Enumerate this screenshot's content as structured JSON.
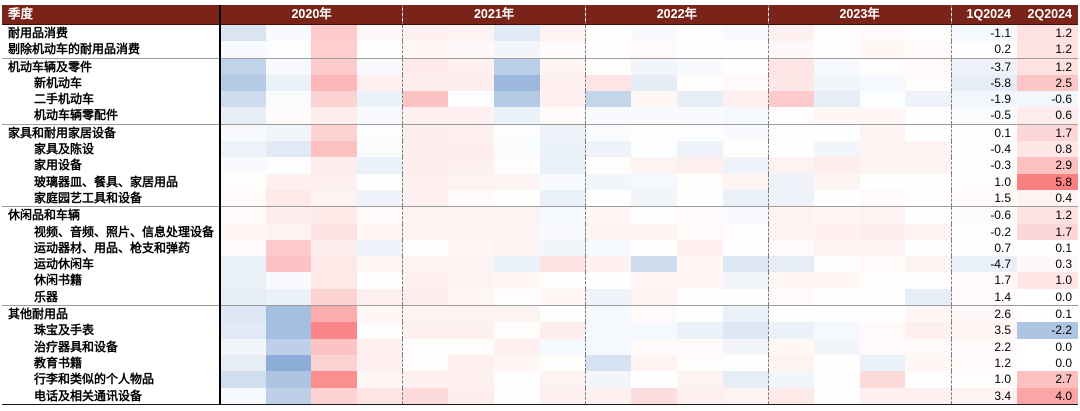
{
  "header": {
    "quarter_label": "季度",
    "years": [
      "2020年",
      "2021年",
      "2022年",
      "2023年"
    ],
    "q1_label": "1Q2024",
    "q2_label": "2Q2024"
  },
  "colors": {
    "header_bg": "#7A2318",
    "header_text": "#FFFFFF",
    "positive_max": "#F8696B",
    "negative_max": "#5A8AC6",
    "midpoint": "#FFFFFF",
    "dashed_grid": "#7D7D7D",
    "group_separator": "#9C9C9C",
    "solid_border": "#000000"
  },
  "chart_data": {
    "type": "heatmap",
    "title": "",
    "columns": [
      "2020Q1",
      "2020Q2",
      "2020Q3",
      "2020Q4",
      "2021Q1",
      "2021Q2",
      "2021Q3",
      "2021Q4",
      "2022Q1",
      "2022Q2",
      "2022Q3",
      "2022Q4",
      "2023Q1",
      "2023Q2",
      "2023Q3",
      "2023Q4"
    ],
    "value_note": "heat values are color intensities read from the图, scale -1 (deep blue) to +1 (deep red); 1Q2024/2Q2024 are printed numbers",
    "rows": [
      {
        "label": "耐用品消费",
        "indent": false,
        "group_end": false,
        "heat": [
          -0.22,
          -0.04,
          0.35,
          0.05,
          0.1,
          0.08,
          -0.18,
          0.08,
          0.02,
          -0.04,
          0.02,
          -0.04,
          0.1,
          0.02,
          0.04,
          0.02
        ],
        "q1": -1.1,
        "q2": 1.2,
        "q1_heat": -0.06,
        "q2_heat": 0.2
      },
      {
        "label": "剔除机动车的耐用品消费",
        "indent": false,
        "group_end": true,
        "heat": [
          -0.04,
          -0.02,
          0.33,
          0.02,
          0.06,
          0.05,
          -0.08,
          0.03,
          0.01,
          0.04,
          0.01,
          0.01,
          0.05,
          0.02,
          0.06,
          0.04
        ],
        "q1": 0.2,
        "q2": 1.2,
        "q1_heat": 0.01,
        "q2_heat": 0.2
      },
      {
        "label": "机动车辆及零件",
        "indent": false,
        "group_end": false,
        "heat": [
          -0.38,
          -0.05,
          0.35,
          -0.04,
          0.14,
          0.1,
          -0.42,
          0.08,
          0.02,
          -0.08,
          -0.04,
          0.01,
          0.18,
          -0.06,
          0.02,
          0.04
        ],
        "q1": -3.7,
        "q2": 1.2,
        "q1_heat": -0.1,
        "q2_heat": 0.2
      },
      {
        "label": "新机动车",
        "indent": true,
        "group_end": false,
        "heat": [
          -0.45,
          -0.12,
          0.48,
          0.1,
          0.12,
          0.12,
          -0.6,
          0.1,
          0.18,
          -0.16,
          0.02,
          0.04,
          0.16,
          -0.08,
          -0.06,
          0.02
        ],
        "q1": -5.8,
        "q2": 2.5,
        "q1_heat": -0.15,
        "q2_heat": 0.38
      },
      {
        "label": "二手机动车",
        "indent": true,
        "group_end": false,
        "heat": [
          -0.3,
          -0.03,
          0.3,
          -0.12,
          0.4,
          -0.02,
          -0.45,
          0.1,
          -0.35,
          0.06,
          -0.15,
          0.1,
          0.35,
          -0.15,
          -0.02,
          -0.1
        ],
        "q1": -1.9,
        "q2": -0.6,
        "q1_heat": -0.07,
        "q2_heat": -0.07
      },
      {
        "label": "机动车辆零配件",
        "indent": true,
        "group_end": true,
        "heat": [
          -0.15,
          0.03,
          0.12,
          -0.05,
          0.1,
          0.1,
          -0.12,
          0.04,
          -0.04,
          -0.04,
          -0.04,
          -0.06,
          0.02,
          0.06,
          0.06,
          0.01
        ],
        "q1": -0.5,
        "q2": 0.6,
        "q1_heat": -0.03,
        "q2_heat": 0.13
      },
      {
        "label": "家具和耐用家居设备",
        "indent": false,
        "group_end": false,
        "heat": [
          -0.05,
          -0.08,
          0.3,
          -0.02,
          0.12,
          0.1,
          -0.02,
          -0.1,
          -0.03,
          0.01,
          -0.02,
          -0.04,
          0.02,
          0.01,
          0.08,
          0.01
        ],
        "q1": 0.1,
        "q2": 1.7,
        "q1_heat": 0.01,
        "q2_heat": 0.27
      },
      {
        "label": "家具及陈设",
        "indent": true,
        "group_end": false,
        "heat": [
          -0.1,
          -0.18,
          0.42,
          -0.03,
          0.12,
          0.12,
          -0.03,
          -0.12,
          -0.1,
          -0.02,
          -0.1,
          0.02,
          0.01,
          -0.08,
          0.08,
          0.08
        ],
        "q1": -0.4,
        "q2": 0.8,
        "q1_heat": -0.02,
        "q2_heat": 0.16
      },
      {
        "label": "家用设备",
        "indent": true,
        "group_end": false,
        "heat": [
          -0.04,
          -0.02,
          0.12,
          -0.12,
          0.12,
          0.1,
          0.02,
          -0.12,
          0.02,
          0.08,
          0.1,
          -0.1,
          0.08,
          0.12,
          0.08,
          0.08
        ],
        "q1": -0.3,
        "q2": 2.9,
        "q1_heat": -0.02,
        "q2_heat": 0.42
      },
      {
        "label": "玻璃器皿、餐具、家居用品",
        "indent": true,
        "group_end": false,
        "heat": [
          0.02,
          0.1,
          0.1,
          0.01,
          0.1,
          0.08,
          0.08,
          -0.04,
          -0.08,
          -0.06,
          0.02,
          0.08,
          -0.1,
          0.08,
          0.01,
          0.01
        ],
        "q1": 1.0,
        "q2": 5.8,
        "q1_heat": 0.02,
        "q2_heat": 0.85
      },
      {
        "label": "家庭园艺工具和设备",
        "indent": true,
        "group_end": true,
        "heat": [
          0.04,
          0.15,
          0.08,
          -0.1,
          0.1,
          0.04,
          0.01,
          -0.12,
          0.01,
          -0.08,
          0.01,
          -0.12,
          -0.1,
          0.01,
          0.04,
          0.01
        ],
        "q1": 1.5,
        "q2": 0.4,
        "q1_heat": 0.04,
        "q2_heat": 0.08
      },
      {
        "label": "休闲品和车辆",
        "indent": false,
        "group_end": false,
        "heat": [
          0.03,
          0.12,
          0.15,
          0.04,
          0.08,
          0.08,
          0.08,
          -0.06,
          0.06,
          0.01,
          0.04,
          -0.04,
          0.08,
          0.06,
          0.08,
          0.01
        ],
        "q1": -0.6,
        "q2": 1.2,
        "q1_heat": -0.03,
        "q2_heat": 0.2
      },
      {
        "label": "视频、音频、照片、信息处理设备",
        "indent": true,
        "group_end": false,
        "heat": [
          0.06,
          0.08,
          0.2,
          0.06,
          0.08,
          0.08,
          0.08,
          -0.04,
          0.08,
          0.08,
          0.04,
          0.02,
          0.08,
          0.1,
          0.12,
          0.08
        ],
        "q1": -0.2,
        "q2": 1.7,
        "q1_heat": -0.01,
        "q2_heat": 0.27
      },
      {
        "label": "运动器材、用品、枪支和弹药",
        "indent": true,
        "group_end": false,
        "heat": [
          0.04,
          0.35,
          0.12,
          -0.1,
          0.02,
          0.06,
          0.08,
          -0.08,
          -0.06,
          0.01,
          0.1,
          0.01,
          0.04,
          0.08,
          0.08,
          0.01
        ],
        "q1": 0.7,
        "q2": 0.1,
        "q1_heat": 0.02,
        "q2_heat": 0.01
      },
      {
        "label": "运动休闲车",
        "indent": true,
        "group_end": false,
        "heat": [
          -0.12,
          0.4,
          0.15,
          0.06,
          0.08,
          0.08,
          -0.12,
          0.2,
          0.1,
          -0.3,
          0.06,
          -0.2,
          -0.15,
          0.02,
          0.04,
          0.08
        ],
        "q1": -4.7,
        "q2": 0.3,
        "q1_heat": -0.13,
        "q2_heat": 0.05
      },
      {
        "label": "休闲书籍",
        "indent": true,
        "group_end": false,
        "heat": [
          -0.12,
          -0.04,
          0.15,
          0.01,
          0.1,
          0.08,
          0.06,
          0.01,
          0.01,
          0.06,
          0.06,
          -0.08,
          0.06,
          0.06,
          0.01,
          0.01
        ],
        "q1": 1.7,
        "q2": 1.0,
        "q1_heat": 0.04,
        "q2_heat": 0.17
      },
      {
        "label": "乐器",
        "indent": true,
        "group_end": true,
        "heat": [
          -0.15,
          -0.12,
          0.3,
          0.1,
          0.12,
          0.06,
          0.02,
          0.06,
          -0.1,
          0.08,
          0.01,
          0.01,
          0.04,
          0.01,
          0.01,
          -0.15
        ],
        "q1": 1.4,
        "q2": 0.0,
        "q1_heat": 0.03,
        "q2_heat": 0.0
      },
      {
        "label": "其他耐用品",
        "indent": false,
        "group_end": false,
        "heat": [
          -0.2,
          -0.55,
          0.55,
          0.06,
          0.08,
          0.08,
          0.08,
          0.01,
          -0.06,
          0.04,
          0.01,
          -0.12,
          0.01,
          0.01,
          0.01,
          0.06
        ],
        "q1": 2.6,
        "q2": 0.1,
        "q1_heat": 0.05,
        "q2_heat": 0.01
      },
      {
        "label": "珠宝及手表",
        "indent": true,
        "group_end": false,
        "heat": [
          -0.18,
          -0.55,
          0.8,
          0.02,
          0.1,
          0.1,
          0.02,
          0.12,
          -0.06,
          -0.06,
          -0.12,
          -0.2,
          -0.12,
          -0.06,
          0.04,
          0.1
        ],
        "q1": 3.5,
        "q2": -2.2,
        "q1_heat": 0.07,
        "q2_heat": -0.5
      },
      {
        "label": "治疗器具和设备",
        "indent": true,
        "group_end": false,
        "heat": [
          -0.08,
          -0.4,
          0.4,
          0.1,
          0.02,
          0.02,
          0.1,
          -0.06,
          -0.06,
          0.04,
          0.04,
          -0.08,
          0.06,
          -0.08,
          0.04,
          0.04
        ],
        "q1": 2.2,
        "q2": 0.0,
        "q1_heat": 0.04,
        "q2_heat": 0.0
      },
      {
        "label": "教育书籍",
        "indent": true,
        "group_end": false,
        "heat": [
          -0.15,
          -0.7,
          0.3,
          0.1,
          0.02,
          0.1,
          0.06,
          0.02,
          -0.25,
          0.08,
          0.02,
          0.01,
          0.08,
          0.01,
          -0.12,
          0.06
        ],
        "q1": 1.2,
        "q2": 0.0,
        "q1_heat": 0.03,
        "q2_heat": 0.0
      },
      {
        "label": "行李和类似的个人物品",
        "indent": true,
        "group_end": false,
        "heat": [
          -0.28,
          -0.5,
          0.75,
          0.06,
          0.1,
          0.1,
          0.01,
          0.08,
          -0.08,
          0.01,
          0.08,
          -0.15,
          -0.08,
          0.01,
          0.25,
          0.01
        ],
        "q1": 1.0,
        "q2": 2.7,
        "q1_heat": 0.02,
        "q2_heat": 0.42
      },
      {
        "label": "电话及相关通讯设备",
        "indent": true,
        "group_end": false,
        "heat": [
          -0.06,
          -0.4,
          0.3,
          0.18,
          0.25,
          0.12,
          0.01,
          0.1,
          0.1,
          0.22,
          0.1,
          0.08,
          0.15,
          0.01,
          0.1,
          0.1
        ],
        "q1": 3.4,
        "q2": 4.0,
        "q1_heat": 0.08,
        "q2_heat": 0.6
      }
    ]
  }
}
